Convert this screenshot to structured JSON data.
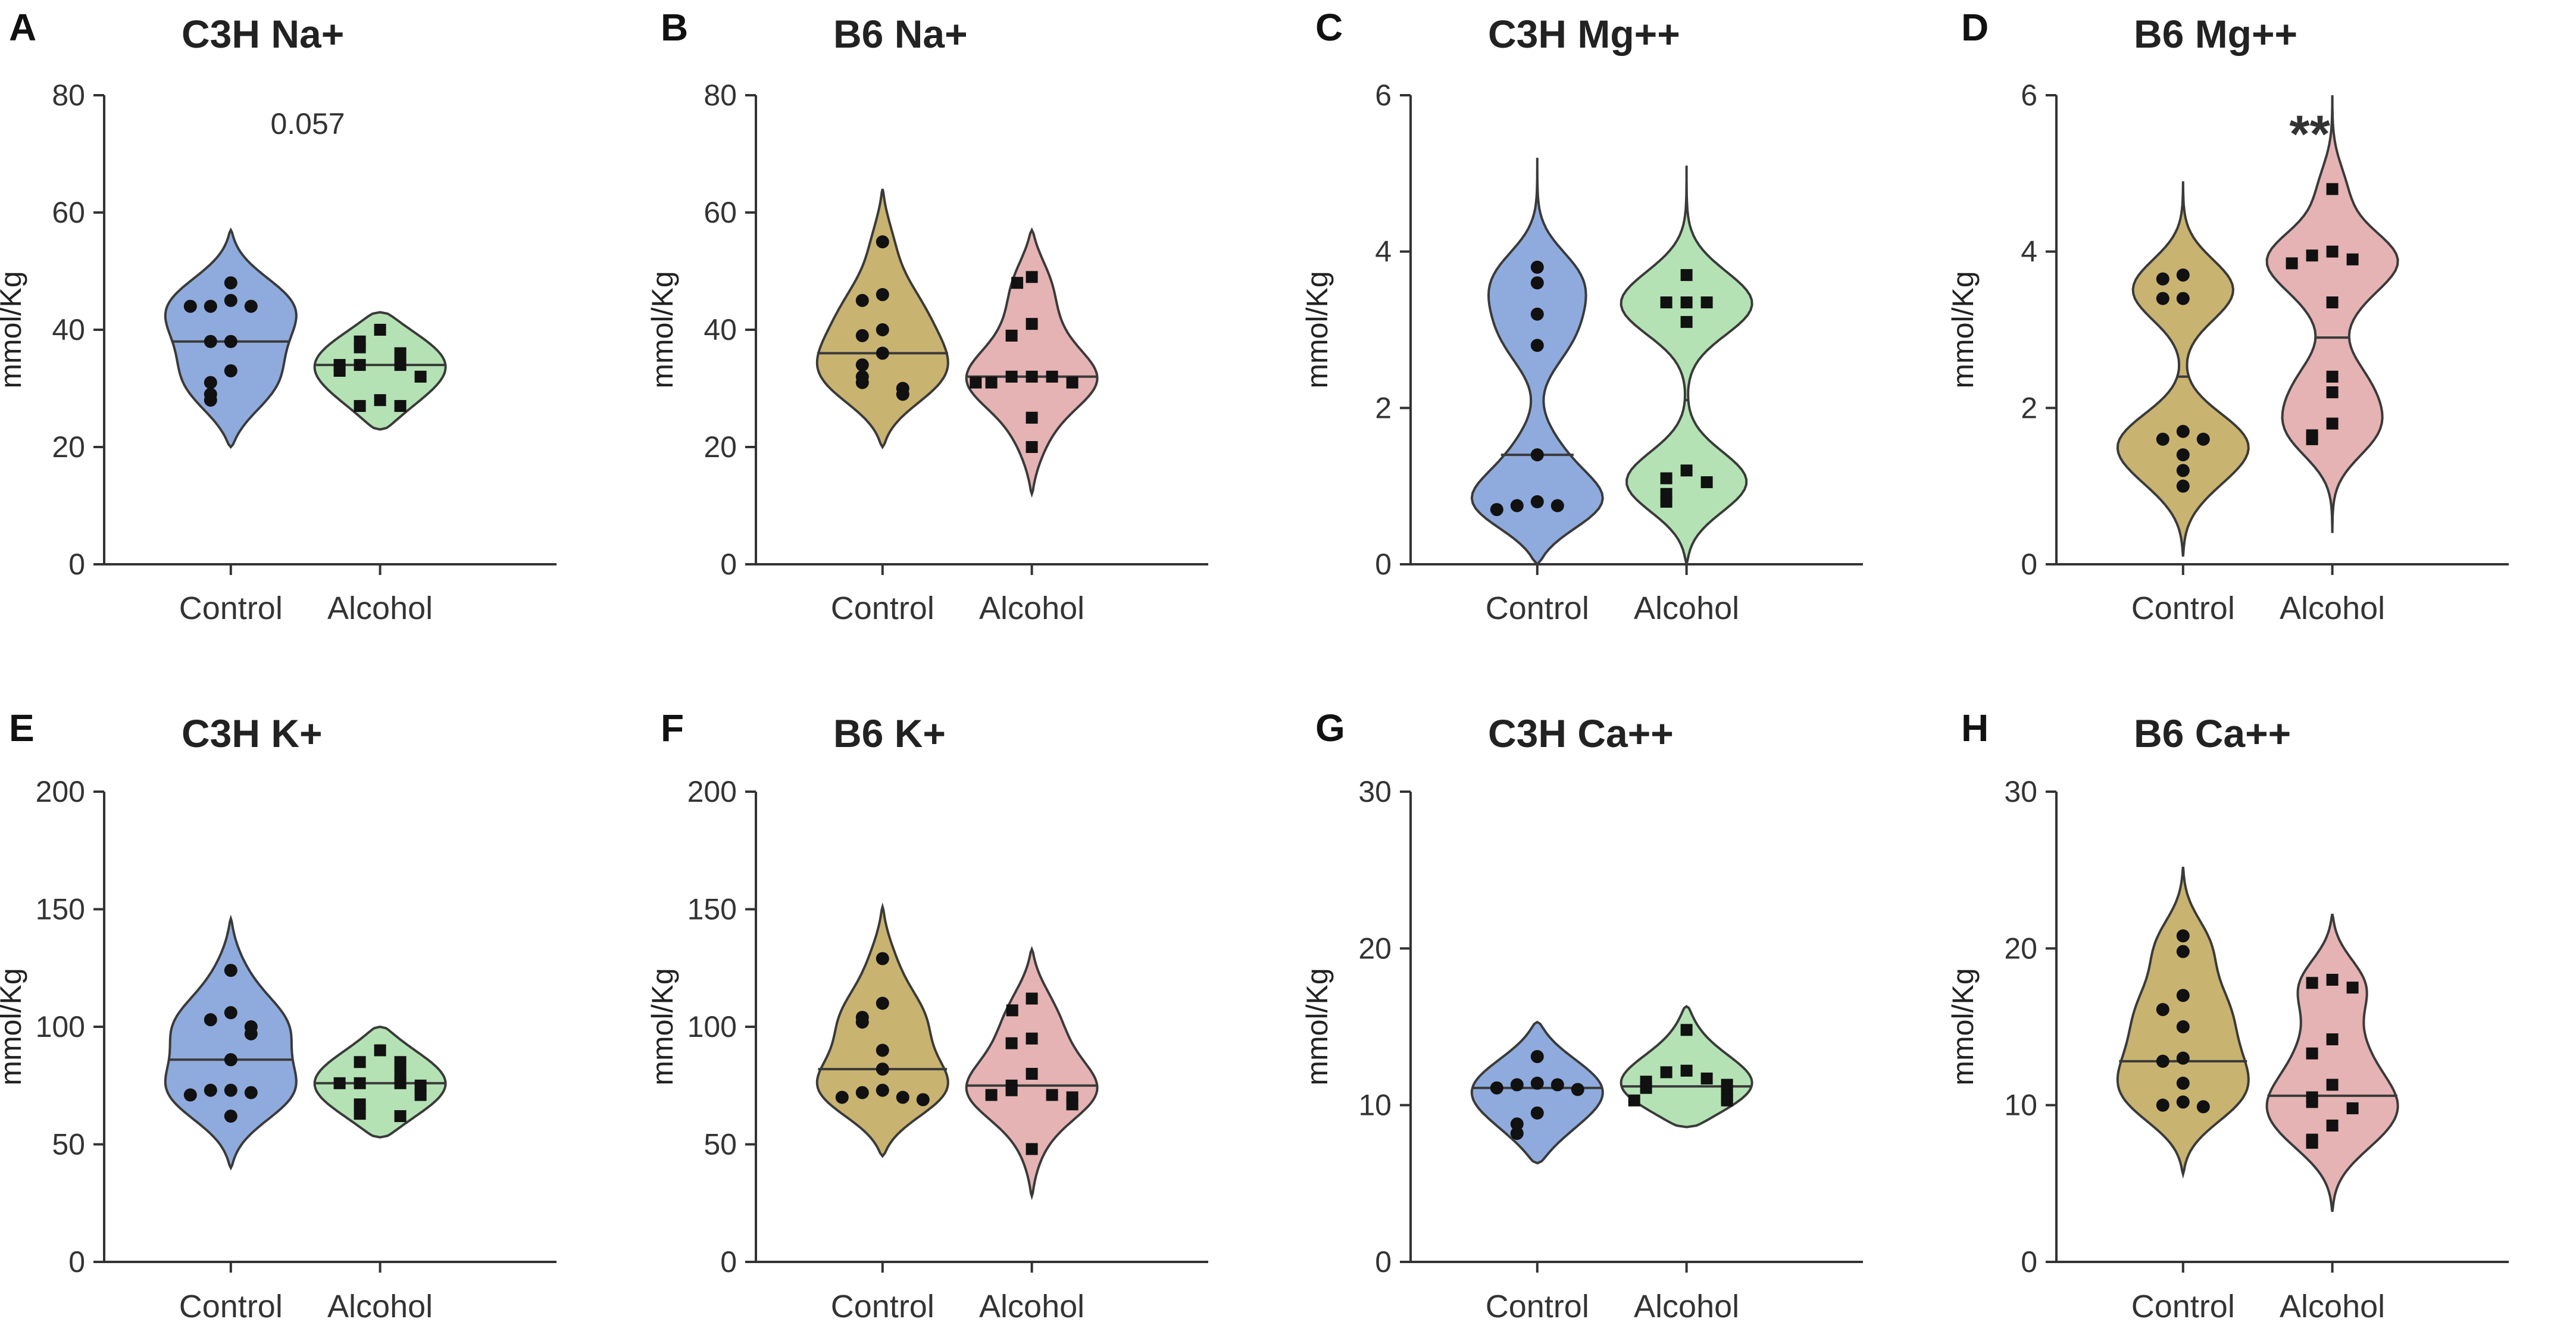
{
  "chart_data": [
    {
      "letter": "A",
      "type": "violin",
      "title": "C3H Na+",
      "ylabel": "mmol/Kg",
      "ylim": [
        0,
        80
      ],
      "yticks": [
        0,
        20,
        40,
        60,
        80
      ],
      "categories": [
        "Control",
        "Alcohol"
      ],
      "annotation": "0.057",
      "series": [
        {
          "name": "Control",
          "color": "#8fabdd",
          "marker": "circle",
          "median": 38,
          "range": [
            20,
            57
          ],
          "values": [
            48,
            45,
            44,
            44,
            44,
            38,
            38,
            33,
            31,
            29,
            28
          ]
        },
        {
          "name": "Alcohol",
          "color": "#b4e2b4",
          "marker": "square",
          "median": 34,
          "range": [
            23,
            43
          ],
          "values": [
            40,
            38,
            37,
            36,
            34,
            34,
            34,
            33,
            32,
            28,
            27,
            27
          ]
        }
      ]
    },
    {
      "letter": "B",
      "type": "violin",
      "title": "B6 Na+",
      "ylabel": "mmol/Kg",
      "ylim": [
        0,
        80
      ],
      "yticks": [
        0,
        20,
        40,
        60,
        80
      ],
      "categories": [
        "Control",
        "Alcohol"
      ],
      "annotation": "",
      "series": [
        {
          "name": "Control",
          "color": "#c8b370",
          "marker": "circle",
          "median": 36,
          "range": [
            20,
            64
          ],
          "values": [
            55,
            46,
            45,
            40,
            39,
            36,
            34,
            32,
            31,
            30,
            29
          ]
        },
        {
          "name": "Alcohol",
          "color": "#e5b3b3",
          "marker": "square",
          "median": 32,
          "range": [
            12,
            57
          ],
          "values": [
            49,
            48,
            41,
            39,
            32,
            32,
            32,
            31,
            31,
            31,
            25,
            20
          ]
        }
      ]
    },
    {
      "letter": "C",
      "type": "violin",
      "title": "C3H Mg++",
      "ylabel": "mmol/Kg",
      "ylim": [
        0,
        6
      ],
      "yticks": [
        0,
        2,
        4,
        6
      ],
      "categories": [
        "Control",
        "Alcohol"
      ],
      "annotation": "",
      "series": [
        {
          "name": "Control",
          "color": "#8fabdd",
          "marker": "circle",
          "median": 1.4,
          "range": [
            0,
            5.2
          ],
          "values": [
            3.8,
            3.6,
            3.2,
            2.8,
            1.4,
            0.8,
            0.75,
            0.75,
            0.7
          ]
        },
        {
          "name": "Alcohol",
          "color": "#b4e2b4",
          "marker": "square",
          "median": 2.1,
          "range": [
            0,
            5.1
          ],
          "values": [
            3.7,
            3.35,
            3.35,
            3.35,
            3.1,
            1.2,
            1.1,
            1.05,
            0.9,
            0.8
          ]
        }
      ]
    },
    {
      "letter": "D",
      "type": "violin",
      "title": "B6 Mg++",
      "ylabel": "mmol/Kg",
      "ylim": [
        0,
        6
      ],
      "yticks": [
        0,
        2,
        4,
        6
      ],
      "categories": [
        "Control",
        "Alcohol"
      ],
      "annotation": "**",
      "series": [
        {
          "name": "Control",
          "color": "#c8b370",
          "marker": "circle",
          "median": 2.4,
          "range": [
            0.1,
            4.9
          ],
          "values": [
            3.7,
            3.65,
            3.4,
            3.4,
            1.7,
            1.6,
            1.6,
            1.4,
            1.2,
            1.0
          ]
        },
        {
          "name": "Alcohol",
          "color": "#e5b3b3",
          "marker": "square",
          "median": 2.9,
          "range": [
            0.4,
            6.0
          ],
          "values": [
            4.8,
            4.0,
            3.95,
            3.9,
            3.85,
            3.35,
            2.4,
            2.2,
            1.8,
            1.65,
            1.6
          ]
        }
      ]
    },
    {
      "letter": "E",
      "type": "violin",
      "title": "C3H K+",
      "ylabel": "mmol/Kg",
      "ylim": [
        0,
        200
      ],
      "yticks": [
        0,
        50,
        100,
        150,
        200
      ],
      "categories": [
        "Control",
        "Alcohol"
      ],
      "annotation": "",
      "series": [
        {
          "name": "Control",
          "color": "#8fabdd",
          "marker": "circle",
          "median": 86,
          "range": [
            40,
            146
          ],
          "values": [
            124,
            106,
            103,
            100,
            97,
            86,
            73,
            73,
            72,
            71,
            62
          ]
        },
        {
          "name": "Alcohol",
          "color": "#b4e2b4",
          "marker": "square",
          "median": 76,
          "range": [
            53,
            100
          ],
          "values": [
            90,
            85,
            85,
            80,
            76,
            76,
            76,
            75,
            71,
            67,
            63,
            62
          ]
        }
      ]
    },
    {
      "letter": "F",
      "type": "violin",
      "title": "B6 K+",
      "ylabel": "mmol/Kg",
      "ylim": [
        0,
        200
      ],
      "yticks": [
        0,
        50,
        100,
        150,
        200
      ],
      "categories": [
        "Control",
        "Alcohol"
      ],
      "annotation": "",
      "series": [
        {
          "name": "Control",
          "color": "#c8b370",
          "marker": "circle",
          "median": 82,
          "range": [
            45,
            151
          ],
          "values": [
            129,
            110,
            104,
            102,
            90,
            82,
            73,
            72,
            70,
            70,
            69
          ]
        },
        {
          "name": "Alcohol",
          "color": "#e5b3b3",
          "marker": "square",
          "median": 75,
          "range": [
            28,
            133
          ],
          "values": [
            112,
            107,
            95,
            93,
            80,
            75,
            73,
            71,
            71,
            70,
            67,
            48
          ]
        }
      ]
    },
    {
      "letter": "G",
      "type": "violin",
      "title": "C3H Ca++",
      "ylabel": "mmol/Kg",
      "ylim": [
        0,
        30
      ],
      "yticks": [
        0,
        10,
        20,
        30
      ],
      "categories": [
        "Control",
        "Alcohol"
      ],
      "annotation": "",
      "series": [
        {
          "name": "Control",
          "color": "#8fabdd",
          "marker": "circle",
          "median": 11.1,
          "range": [
            6.3,
            15.3
          ],
          "values": [
            13.1,
            11.4,
            11.3,
            11.3,
            11.1,
            11.0,
            9.5,
            8.8,
            8.2
          ]
        },
        {
          "name": "Alcohol",
          "color": "#b4e2b4",
          "marker": "square",
          "median": 11.2,
          "range": [
            8.6,
            16.3
          ],
          "values": [
            14.8,
            12.2,
            12.1,
            11.7,
            11.5,
            11.3,
            11.1,
            10.9,
            10.6,
            10.4,
            10.3,
            10.3
          ]
        }
      ]
    },
    {
      "letter": "H",
      "type": "violin",
      "title": "B6 Ca++",
      "ylabel": "mmol/Kg",
      "ylim": [
        0,
        30
      ],
      "yticks": [
        0,
        10,
        20,
        30
      ],
      "categories": [
        "Control",
        "Alcohol"
      ],
      "annotation": "",
      "series": [
        {
          "name": "Control",
          "color": "#c8b370",
          "marker": "circle",
          "median": 12.8,
          "range": [
            5.6,
            25.2
          ],
          "values": [
            20.8,
            19.8,
            17.0,
            16.1,
            15.0,
            13.0,
            12.8,
            11.4,
            10.2,
            10.0,
            9.9
          ]
        },
        {
          "name": "Alcohol",
          "color": "#e5b3b3",
          "marker": "square",
          "median": 10.6,
          "range": [
            3.2,
            22.2
          ],
          "values": [
            18.0,
            17.8,
            17.5,
            14.2,
            13.3,
            11.3,
            10.5,
            10.2,
            9.8,
            8.7,
            7.8,
            7.6
          ]
        }
      ]
    }
  ]
}
